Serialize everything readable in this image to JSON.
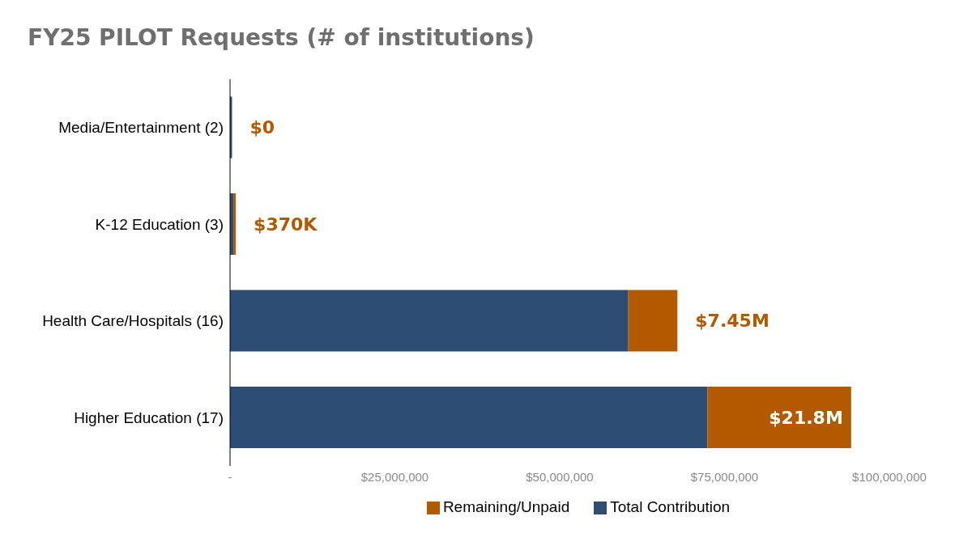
{
  "chart_data": {
    "type": "bar",
    "orientation": "horizontal",
    "stacked": true,
    "title": "FY25 PILOT Requests (# of institutions)",
    "categories": [
      "Media/Entertainment (2)",
      "K-12 Education (3)",
      "Health Care/Hospitals (16)",
      "Higher Education (17)"
    ],
    "series": [
      {
        "name": "Total Contribution",
        "color": "#2e4d74",
        "values": [
          300000,
          500000,
          60400000,
          72400000
        ]
      },
      {
        "name": "Remaining/Unpaid",
        "color": "#b35900",
        "values": [
          0,
          370000,
          7450000,
          21800000
        ],
        "value_labels": [
          "$0",
          "$370K",
          "$7.45M",
          "$21.8M"
        ]
      }
    ],
    "xlim": [
      0,
      100000000
    ],
    "xticks": [
      {
        "value": 0,
        "label": "-"
      },
      {
        "value": 25000000,
        "label": "$25,000,000"
      },
      {
        "value": 50000000,
        "label": "$50,000,000"
      },
      {
        "value": 75000000,
        "label": "$75,000,000"
      },
      {
        "value": 100000000,
        "label": "$100,000,000"
      }
    ],
    "grid": false,
    "legend": "bottom"
  }
}
